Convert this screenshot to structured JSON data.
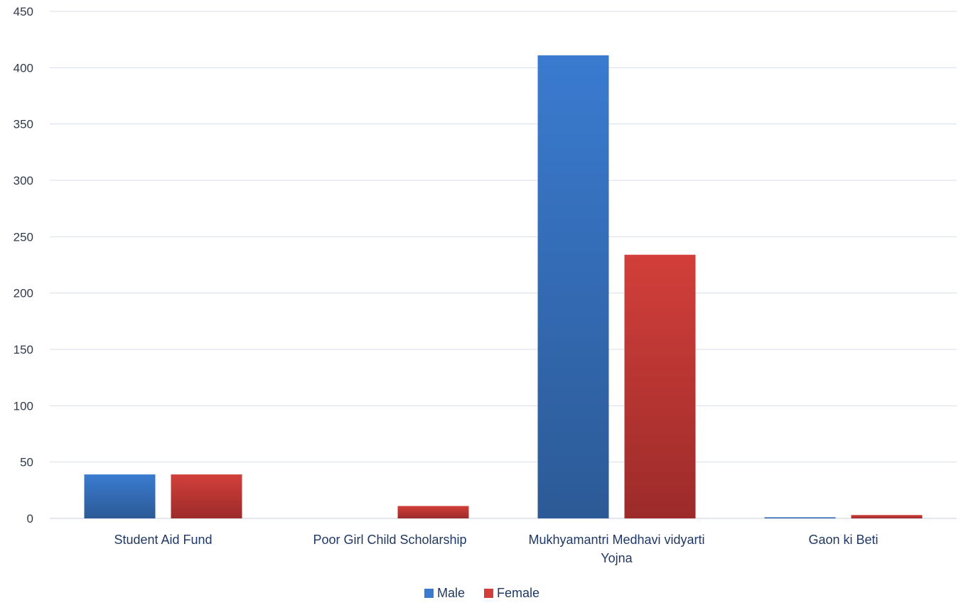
{
  "chart_data": {
    "type": "bar",
    "title": "",
    "xlabel": "",
    "ylabel": "",
    "ylim": [
      0,
      450
    ],
    "yticks": [
      0,
      50,
      100,
      150,
      200,
      250,
      300,
      350,
      400,
      450
    ],
    "grid": true,
    "legend_position": "bottom",
    "categories": [
      "Student Aid Fund",
      "Poor Girl Child Scholarship",
      "Mukhyamantri Medhavi vidyarti Yojna",
      "Gaon ki Beti"
    ],
    "series": [
      {
        "name": "Male",
        "color": "#3a7bd0",
        "color_dark": "#2c5a96",
        "values": [
          39,
          0,
          411,
          1
        ]
      },
      {
        "name": "Female",
        "color": "#d23f3a",
        "color_dark": "#9c2b2a",
        "values": [
          39,
          11,
          234,
          3
        ]
      }
    ]
  }
}
